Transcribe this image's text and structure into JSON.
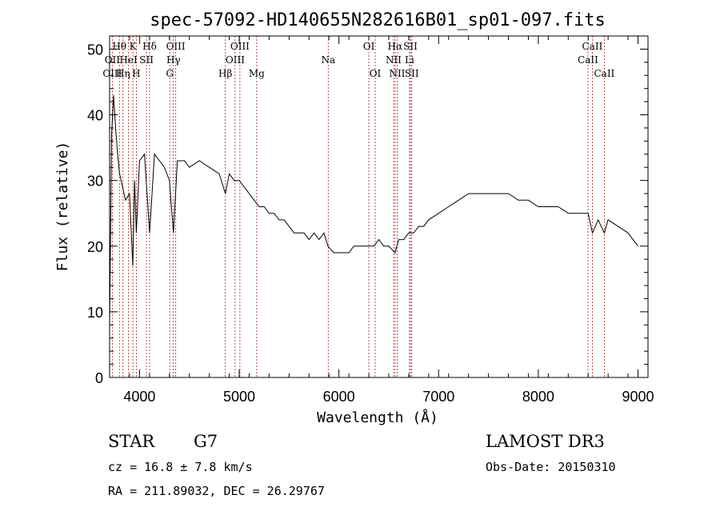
{
  "chart_data": {
    "type": "line",
    "title": "spec-57092-HD140655N282616B01_sp01-097.fits",
    "xlabel": "Wavelength (Å)",
    "ylabel": "Flux (relative)",
    "xlim": [
      3700,
      9100
    ],
    "ylim": [
      0,
      52
    ],
    "x_ticks": [
      4000,
      5000,
      6000,
      7000,
      8000,
      9000
    ],
    "y_ticks": [
      0,
      10,
      20,
      30,
      40,
      50
    ],
    "grid": false,
    "series": [
      {
        "x": [
          3700,
          3720,
          3740,
          3760,
          3780,
          3800,
          3830,
          3860,
          3900,
          3933,
          3950,
          3968,
          4000,
          4050,
          4101,
          4150,
          4200,
          4250,
          4300,
          4340,
          4380,
          4450,
          4500,
          4600,
          4700,
          4800,
          4861,
          4900,
          4950,
          5000,
          5050,
          5100,
          5150,
          5200,
          5250,
          5300,
          5350,
          5400,
          5450,
          5500,
          5550,
          5600,
          5650,
          5700,
          5750,
          5800,
          5850,
          5890,
          5950,
          6000,
          6050,
          6100,
          6150,
          6200,
          6250,
          6300,
          6350,
          6400,
          6450,
          6500,
          6563,
          6600,
          6650,
          6700,
          6750,
          6800,
          6850,
          6900,
          7000,
          7100,
          7200,
          7300,
          7400,
          7500,
          7600,
          7700,
          7800,
          7900,
          8000,
          8100,
          8200,
          8300,
          8400,
          8500,
          8542,
          8600,
          8662,
          8700,
          8800,
          8900,
          8950,
          9000
        ],
        "values": [
          8,
          37,
          43,
          38,
          34,
          31,
          29,
          27,
          28,
          17,
          30,
          22,
          33,
          34,
          22,
          34,
          33,
          32,
          30,
          22,
          33,
          33,
          32,
          33,
          32,
          31,
          28,
          31,
          30,
          30,
          29,
          28,
          27,
          26,
          26,
          25,
          25,
          24,
          24,
          23,
          22,
          22,
          22,
          21,
          22,
          21,
          22,
          20,
          19,
          19,
          19,
          19,
          20,
          20,
          20,
          20,
          20,
          21,
          20,
          20,
          19,
          21,
          21,
          22,
          22,
          23,
          23,
          24,
          25,
          26,
          27,
          28,
          28,
          28,
          28,
          28,
          27,
          27,
          26,
          26,
          26,
          25,
          25,
          25,
          22,
          24,
          22,
          24,
          23,
          22,
          21,
          20
        ]
      }
    ],
    "spectral_lines": [
      {
        "name": "Hθ",
        "wavelength": 3798,
        "row": 0
      },
      {
        "name": "OII",
        "wavelength": 3727,
        "row": 1
      },
      {
        "name": "OIII",
        "wavelength": 3727,
        "row": 2
      },
      {
        "name": "K",
        "wavelength": 3934,
        "row": 0
      },
      {
        "name": "HeI",
        "wavelength": 3889,
        "row": 1
      },
      {
        "name": "Hη",
        "wavelength": 3835,
        "row": 2
      },
      {
        "name": "Hδ",
        "wavelength": 4101,
        "row": 0
      },
      {
        "name": "SII",
        "wavelength": 4070,
        "row": 1
      },
      {
        "name": "H",
        "wavelength": 3968,
        "row": 2
      },
      {
        "name": "OIII",
        "wavelength": 4363,
        "row": 0
      },
      {
        "name": "Hγ",
        "wavelength": 4340,
        "row": 1
      },
      {
        "name": "G",
        "wavelength": 4304,
        "row": 2
      },
      {
        "name": "OIII",
        "wavelength": 5007,
        "row": 0
      },
      {
        "name": "OIII",
        "wavelength": 4959,
        "row": 1
      },
      {
        "name": "Hβ",
        "wavelength": 4861,
        "row": 2
      },
      {
        "name": "Mg",
        "wavelength": 5175,
        "row": 2
      },
      {
        "name": "Na",
        "wavelength": 5893,
        "row": 1
      },
      {
        "name": "OI",
        "wavelength": 6300,
        "row": 0
      },
      {
        "name": "OI",
        "wavelength": 6364,
        "row": 2
      },
      {
        "name": "Hα",
        "wavelength": 6563,
        "row": 0
      },
      {
        "name": "SII",
        "wavelength": 6717,
        "row": 0
      },
      {
        "name": "NII",
        "wavelength": 6548,
        "row": 1
      },
      {
        "name": "Li",
        "wavelength": 6708,
        "row": 1
      },
      {
        "name": "NII",
        "wavelength": 6584,
        "row": 2
      },
      {
        "name": "SII",
        "wavelength": 6731,
        "row": 2
      },
      {
        "name": "CaII",
        "wavelength": 8542,
        "row": 0
      },
      {
        "name": "CaII",
        "wavelength": 8498,
        "row": 1
      },
      {
        "name": "CaII",
        "wavelength": 8662,
        "row": 2
      }
    ]
  },
  "info": {
    "class": "STAR",
    "subclass": "G7",
    "cz": "cz = 16.8 ± 7.8 km/s",
    "coords": "RA = 211.89032, DEC =  26.29767",
    "survey": "LAMOST DR3",
    "obs_date": "Obs-Date: 20150310"
  },
  "colors": {
    "spectrum": "#000000",
    "line_markers": "#b22222",
    "axes": "#000000"
  }
}
